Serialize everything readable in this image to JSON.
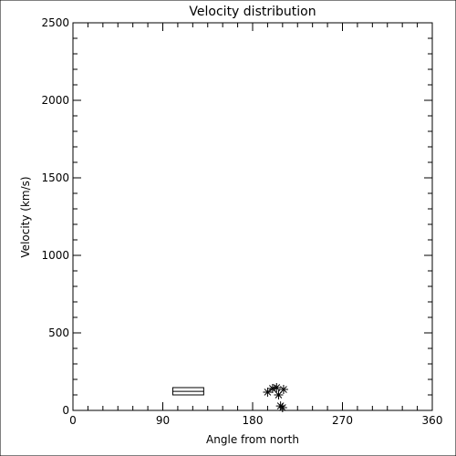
{
  "chart_data": {
    "type": "scatter",
    "title": "Velocity distribution",
    "x_label": "Angle from north",
    "y_label": "Velocity (km/s)",
    "x": [
      195,
      200,
      204,
      206,
      211,
      208,
      210
    ],
    "values": [
      118,
      141,
      147,
      100,
      135,
      29,
      18
    ],
    "marker": "asterisk",
    "color": "#000000",
    "box": {
      "x": [
        100,
        131
      ],
      "y": [
        100,
        147
      ],
      "mid": 123
    },
    "xlim": [
      0,
      360
    ],
    "xticks": [
      0,
      90,
      180,
      270,
      360
    ],
    "ylim": [
      0,
      2500
    ],
    "yticks": [
      0,
      500,
      1000,
      1500,
      2000,
      2500
    ],
    "minor_ticks": {
      "x": 6,
      "y": 5
    },
    "grid": false
  }
}
